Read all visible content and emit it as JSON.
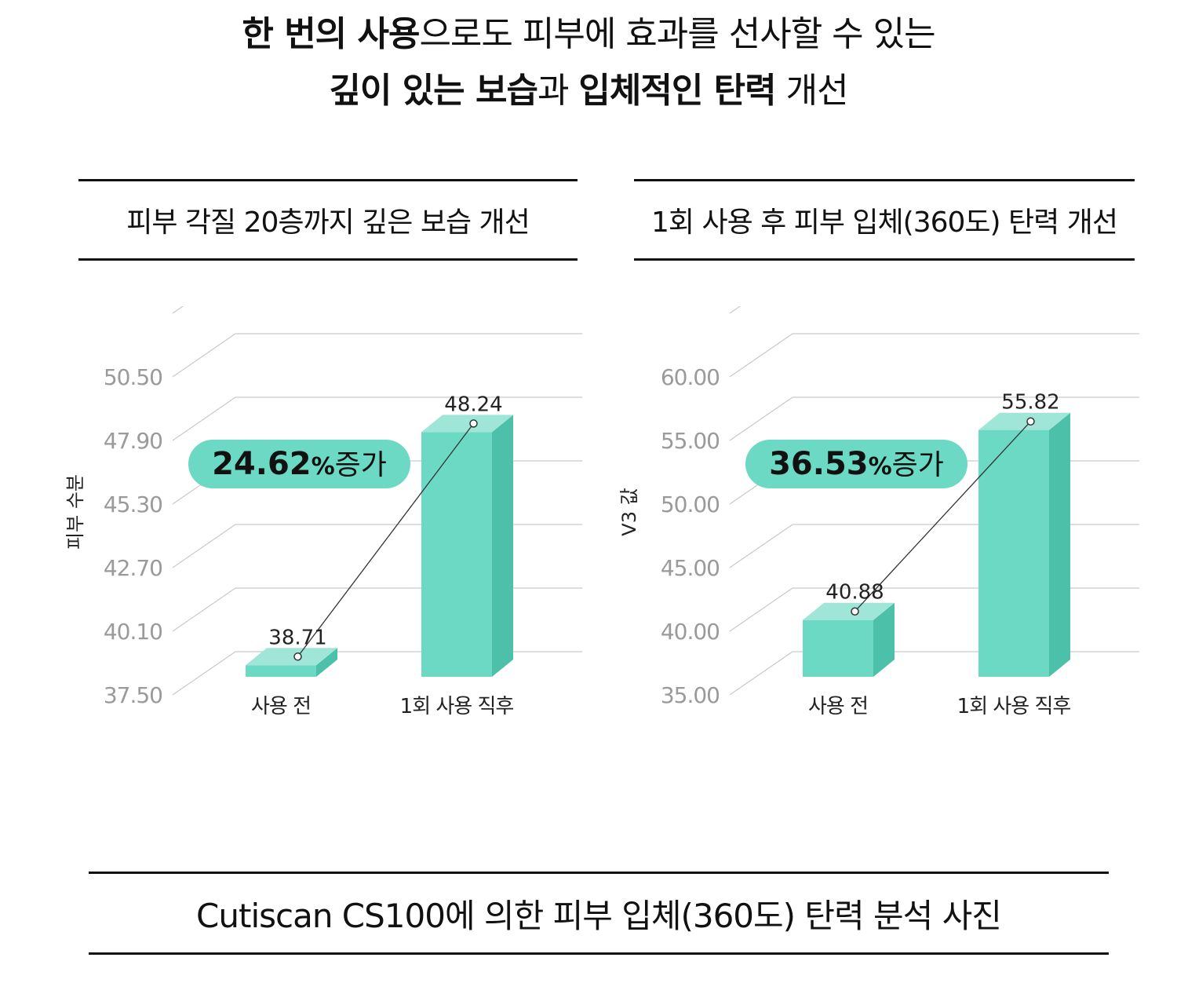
{
  "headline": {
    "line1": [
      {
        "text": "한 번의 사용",
        "bold": true
      },
      {
        "text": "으로도 피부에 효과를 선사할 수 있는",
        "bold": false
      }
    ],
    "line2": [
      {
        "text": "깊이 있는 보습",
        "bold": true
      },
      {
        "text": "과 ",
        "bold": false
      },
      {
        "text": "입체적인 탄력",
        "bold": true
      },
      {
        "text": " 개선",
        "bold": false
      }
    ]
  },
  "colors": {
    "bar_front": "#6cd9c4",
    "bar_side": "#4cc0a9",
    "bar_top": "#9fe6d8",
    "badge": "#6cd9c4",
    "grid": "#c9c9c9",
    "tick_text": "#9a9a9a"
  },
  "chart_data": [
    {
      "type": "bar",
      "title": "피부 각질 20층까지 깊은 보습 개선",
      "ylabel": "피부 수분",
      "categories": [
        "사용 전",
        "1회 사용 직후"
      ],
      "values": [
        38.71,
        48.24
      ],
      "value_labels": [
        "38.71",
        "48.24"
      ],
      "yticks": [
        "37.50",
        "40.10",
        "42.70",
        "45.30",
        "47.90",
        "50.50"
      ],
      "ylim": [
        37.5,
        50.5
      ],
      "badge": {
        "value": "24.62",
        "unit": "%",
        "suffix": "증가"
      },
      "grid": true
    },
    {
      "type": "bar",
      "title": "1회 사용 후 피부 입체(360도) 탄력 개선",
      "ylabel": "V3 값",
      "categories": [
        "사용 전",
        "1회 사용 직후"
      ],
      "values": [
        40.88,
        55.82
      ],
      "value_labels": [
        "40.88",
        "55.82"
      ],
      "yticks": [
        "35.00",
        "40.00",
        "45.00",
        "50.00",
        "55.00",
        "60.00"
      ],
      "ylim": [
        35,
        60
      ],
      "badge": {
        "value": "36.53",
        "unit": "%",
        "suffix": "증가"
      },
      "grid": true
    }
  ],
  "footer": "Cutiscan CS100에 의한 피부 입체(360도) 탄력 분석 사진"
}
